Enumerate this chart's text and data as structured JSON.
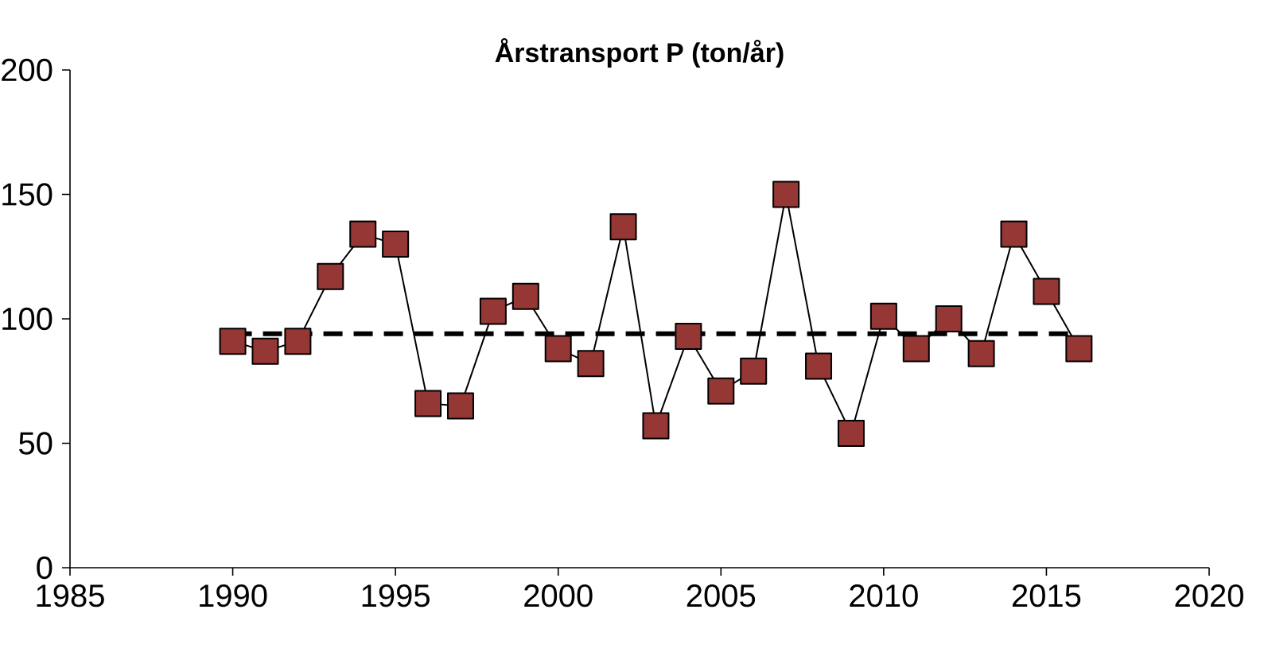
{
  "chart_data": {
    "type": "line",
    "title": "Årstransport  P (ton/år)",
    "x": [
      1990,
      1991,
      1992,
      1993,
      1994,
      1995,
      1996,
      1997,
      1998,
      1999,
      2000,
      2001,
      2002,
      2003,
      2004,
      2005,
      2006,
      2007,
      2008,
      2009,
      2010,
      2011,
      2012,
      2013,
      2014,
      2015,
      2016
    ],
    "series": [
      {
        "color": "#953735",
        "marker": "square",
        "line_style": "solid",
        "values": [
          91,
          87,
          91,
          117,
          134,
          130,
          66,
          65,
          103,
          109,
          88,
          82,
          137,
          57,
          93,
          71,
          79,
          150,
          81,
          54,
          101,
          88,
          100,
          86,
          134,
          111,
          88
        ]
      },
      {
        "type": "line",
        "x": [
          1990,
          2016
        ],
        "color": "#000000",
        "marker": "none",
        "line_style": "dashed",
        "values": [
          94,
          94
        ]
      }
    ],
    "xlim": [
      1985,
      2020
    ],
    "xticks": [
      1985,
      1990,
      1995,
      2000,
      2005,
      2010,
      2015,
      2020
    ],
    "ylim": [
      0,
      200
    ],
    "yticks": [
      0,
      50,
      100,
      150,
      200
    ],
    "grid": false
  }
}
